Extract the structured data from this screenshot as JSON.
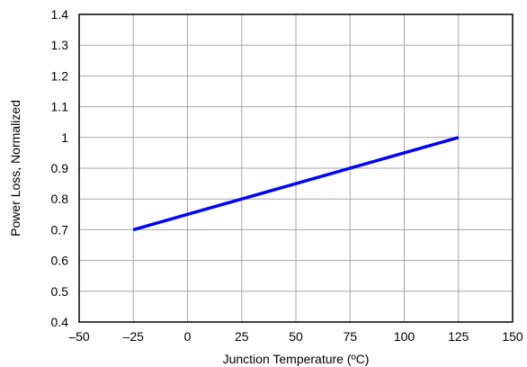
{
  "chart_data": {
    "type": "line",
    "title": "",
    "xlabel": "Junction Temperature (ºC)",
    "ylabel": "Power Loss, Normalized",
    "xlim": [
      -50,
      150
    ],
    "ylim": [
      0.4,
      1.4
    ],
    "x_ticks": [
      "–50",
      "–25",
      "0",
      "25",
      "50",
      "75",
      "100",
      "125",
      "150"
    ],
    "y_ticks": [
      "0.4",
      "0.5",
      "0.6",
      "0.7",
      "0.8",
      "0.9",
      "1",
      "1.1",
      "1.2",
      "1.3",
      "1.4"
    ],
    "grid": true,
    "series": [
      {
        "x": [
          -25,
          125
        ],
        "y": [
          0.7,
          1.0
        ],
        "color": "#0000ff"
      }
    ]
  }
}
